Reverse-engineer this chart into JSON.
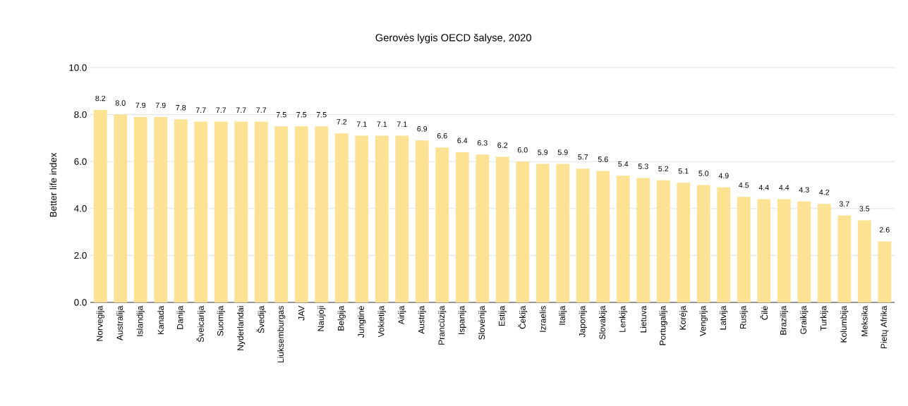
{
  "chart_data": {
    "type": "bar",
    "title": "Gerovės lygis OECD šalyse, 2020",
    "ylabel": "Better life index",
    "categories": [
      "Norvegija",
      "Australija",
      "Islandija",
      "Kanada",
      "Danija",
      "Šveicarija",
      "Suomija",
      "Nyderlandai",
      "Švedija",
      "Liuksemburgas",
      "JAV",
      "Naujoji",
      "Belgija",
      "Jungtinė",
      "Vokietija",
      "Airija",
      "Austrija",
      "Prancūzija",
      "Ispanija",
      "Slovėnija",
      "Estija",
      "Čekija",
      "Izraelis",
      "Italija",
      "Japonija",
      "Slovakija",
      "Lenkija",
      "Lietuva",
      "Portugalija",
      "Korėja",
      "Vengrija",
      "Latvija",
      "Rusija",
      "Čilė",
      "Brazilija",
      "Graikija",
      "Turkija",
      "Kolumbija",
      "Meksika",
      "Pietų Afrika"
    ],
    "values": [
      8.2,
      8.0,
      7.9,
      7.9,
      7.8,
      7.7,
      7.7,
      7.7,
      7.7,
      7.5,
      7.5,
      7.5,
      7.2,
      7.1,
      7.1,
      7.1,
      6.9,
      6.6,
      6.4,
      6.3,
      6.2,
      6.0,
      5.9,
      5.9,
      5.7,
      5.6,
      5.4,
      5.3,
      5.2,
      5.1,
      5.0,
      4.9,
      4.5,
      4.4,
      4.4,
      4.3,
      4.2,
      3.7,
      3.5,
      2.6
    ],
    "value_labels": [
      "8.2",
      "8.0",
      "7.9",
      "7.9",
      "7.8",
      "7.7",
      "7.7",
      "7.7",
      "7.7",
      "7.5",
      "7.5",
      "7.5",
      "7.2",
      "7.1",
      "7.1",
      "7.1",
      "6.9",
      "6.6",
      "6.4",
      "6.3",
      "6.2",
      "6.0",
      "5.9",
      "5.9",
      "5.7",
      "5.6",
      "5.4",
      "5.3",
      "5.2",
      "5.1",
      "5.0",
      "4.9",
      "4.5",
      "4.4",
      "4.4",
      "4.3",
      "4.2",
      "3.7",
      "3.5",
      "2.6"
    ],
    "color": "#fde293",
    "ylim": [
      0,
      10
    ],
    "yticks": [
      {
        "value": 0,
        "label": "0.0"
      },
      {
        "value": 2,
        "label": "2.0"
      },
      {
        "value": 4,
        "label": "4.0"
      },
      {
        "value": 6,
        "label": "6.0"
      },
      {
        "value": 8,
        "label": "8.0"
      },
      {
        "value": 10,
        "label": "10.0"
      }
    ],
    "grid": "y"
  }
}
